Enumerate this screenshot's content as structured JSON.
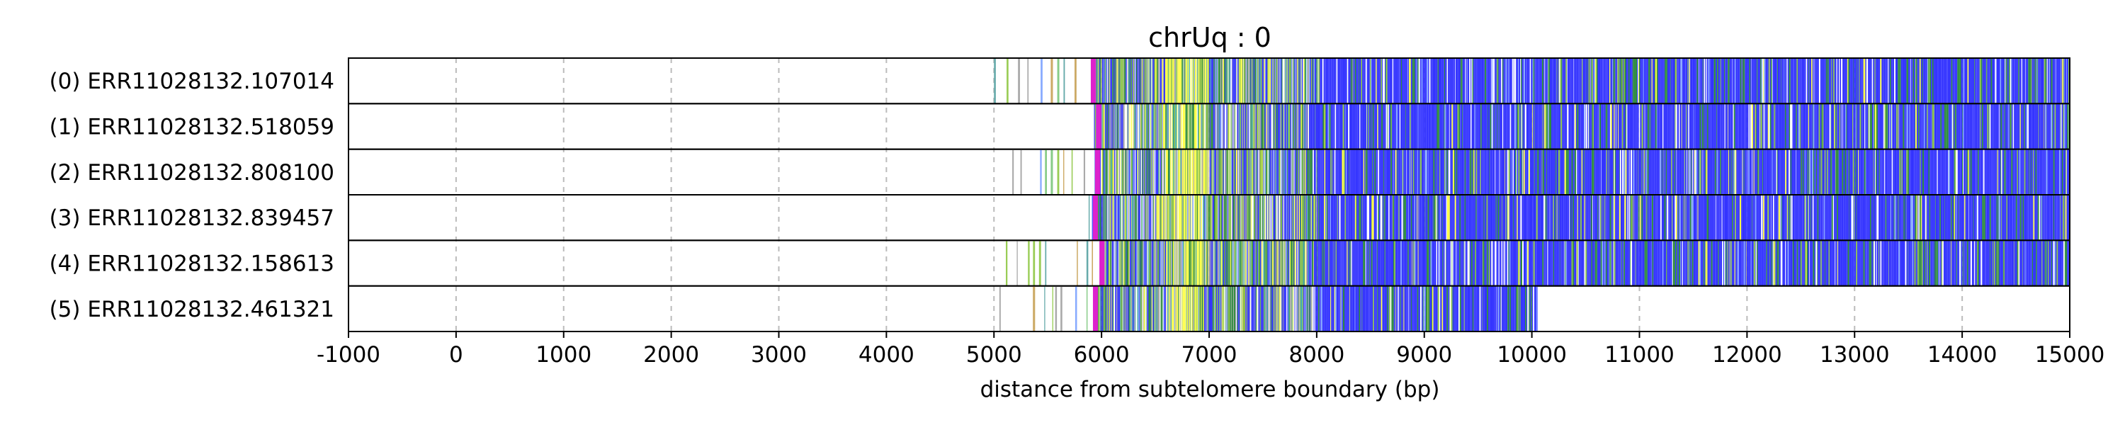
{
  "chart_data": {
    "type": "heatmap",
    "title": "chrUq : 0",
    "xlabel": "distance from subtelomere boundary (bp)",
    "ylabel": "",
    "xlim": [
      -1000,
      15000
    ],
    "xticks": [
      "-1000",
      "0",
      "1000",
      "2000",
      "3000",
      "4000",
      "5000",
      "6000",
      "7000",
      "8000",
      "9000",
      "10000",
      "11000",
      "12000",
      "13000",
      "14000",
      "15000"
    ],
    "xtick_values": [
      -1000,
      0,
      1000,
      2000,
      3000,
      4000,
      5000,
      6000,
      7000,
      8000,
      9000,
      10000,
      11000,
      12000,
      13000,
      14000,
      15000
    ],
    "grid": "vertical dashed",
    "colors": {
      "main_repeat": "#3333ff",
      "green_repeat": "#2e8b3e",
      "light_green_repeat": "#8bc34a",
      "yellow_repeat": "#ffff44",
      "magenta_repeat": "#dd22cc",
      "light_blue_repeat": "#88aaff",
      "gray_repeat": "#aaaaaa",
      "teal_repeat": "#44aaaa"
    },
    "reads": [
      {
        "label": "(0) ERR11028132.107014",
        "start": 5000,
        "end": 15000,
        "dense_start": 5870,
        "magenta_at": 5900,
        "yellow_from": 6600,
        "yellow_to": 7000,
        "blue_from": 7950
      },
      {
        "label": "(1) ERR11028132.518059",
        "start": 5930,
        "end": 15000,
        "dense_start": 5930,
        "magenta_at": 5950,
        "yellow_from": 6550,
        "yellow_to": 6950,
        "blue_from": 7900
      },
      {
        "label": "(2) ERR11028132.808100",
        "start": 5130,
        "end": 15000,
        "dense_start": 5900,
        "magenta_at": 5940,
        "yellow_from": 6550,
        "yellow_to": 7000,
        "blue_from": 7900
      },
      {
        "label": "(3) ERR11028132.839457",
        "start": 5880,
        "end": 15000,
        "dense_start": 5900,
        "magenta_at": 5920,
        "yellow_from": 6500,
        "yellow_to": 6950,
        "blue_from": 8000
      },
      {
        "label": "(4) ERR11028132.158613",
        "start": 5050,
        "end": 15000,
        "dense_start": 5950,
        "magenta_at": 5980,
        "yellow_from": 6600,
        "yellow_to": 7000,
        "blue_from": 7950
      },
      {
        "label": "(5) ERR11028132.461321",
        "start": 5050,
        "end": 10050,
        "dense_start": 5900,
        "magenta_at": 5920,
        "yellow_from": 6600,
        "yellow_to": 6950,
        "blue_from": 7950
      }
    ]
  }
}
